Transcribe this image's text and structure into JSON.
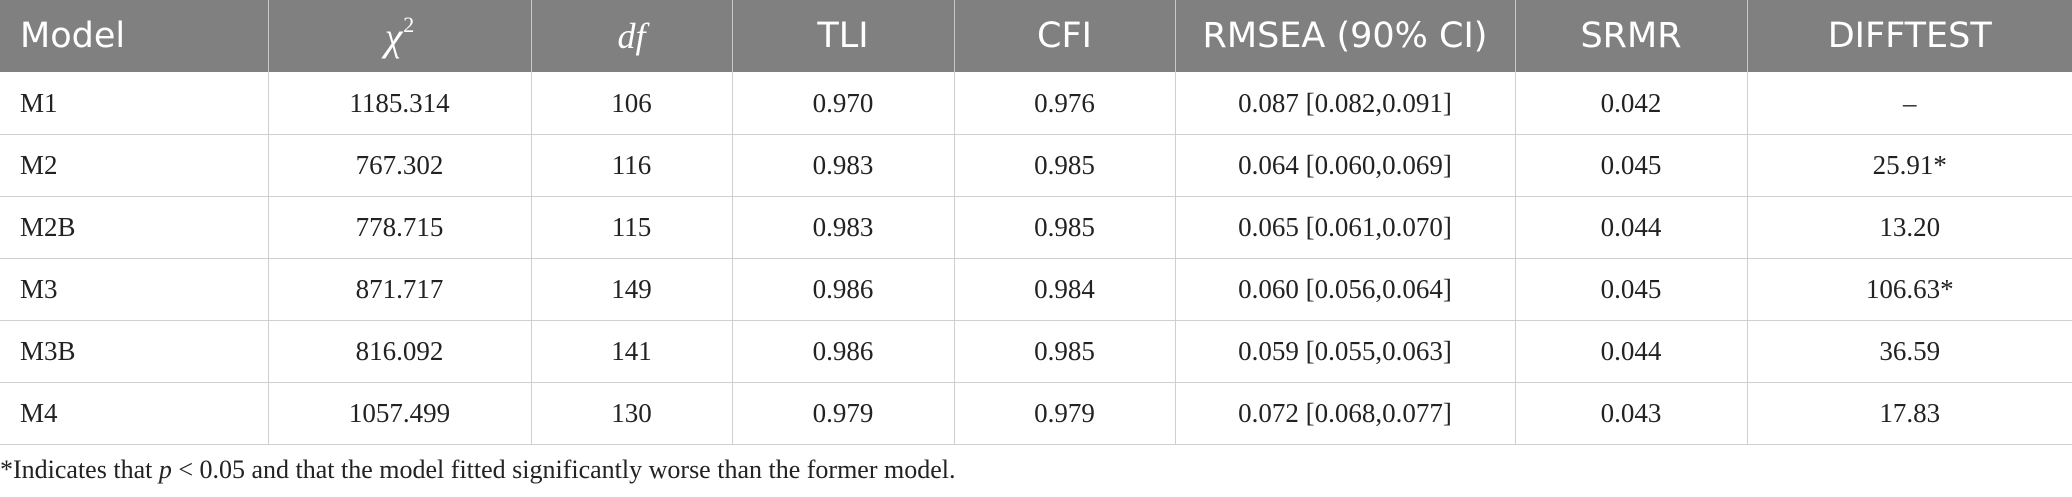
{
  "table": {
    "headers": {
      "model": "Model",
      "chi_base": "χ",
      "chi_sup": "2",
      "df": "df",
      "tli": "TLI",
      "cfi": "CFI",
      "rmsea": "RMSEA (90% CI)",
      "srmr": "SRMR",
      "difftest": "DIFFTEST"
    },
    "rows": [
      {
        "model": "M1",
        "chi2": "1185.314",
        "df": "106",
        "tli": "0.970",
        "cfi": "0.976",
        "rmsea": "0.087 [0.082,0.091]",
        "srmr": "0.042",
        "difftest": "–"
      },
      {
        "model": "M2",
        "chi2": "767.302",
        "df": "116",
        "tli": "0.983",
        "cfi": "0.985",
        "rmsea": "0.064 [0.060,0.069]",
        "srmr": "0.045",
        "difftest": "25.91*"
      },
      {
        "model": "M2B",
        "chi2": "778.715",
        "df": "115",
        "tli": "0.983",
        "cfi": "0.985",
        "rmsea": "0.065 [0.061,0.070]",
        "srmr": "0.044",
        "difftest": "13.20"
      },
      {
        "model": "M3",
        "chi2": "871.717",
        "df": "149",
        "tli": "0.986",
        "cfi": "0.984",
        "rmsea": "0.060 [0.056,0.064]",
        "srmr": "0.045",
        "difftest": "106.63*"
      },
      {
        "model": "M3B",
        "chi2": "816.092",
        "df": "141",
        "tli": "0.986",
        "cfi": "0.985",
        "rmsea": "0.059 [0.055,0.063]",
        "srmr": "0.044",
        "difftest": "36.59"
      },
      {
        "model": "M4",
        "chi2": "1057.499",
        "df": "130",
        "tli": "0.979",
        "cfi": "0.979",
        "rmsea": "0.072 [0.068,0.077]",
        "srmr": "0.043",
        "difftest": "17.83"
      }
    ]
  },
  "footnote": {
    "prefix": "*Indicates that ",
    "p": "p",
    "suffix": " < 0.05 and that the model fitted significantly worse than the former model."
  }
}
